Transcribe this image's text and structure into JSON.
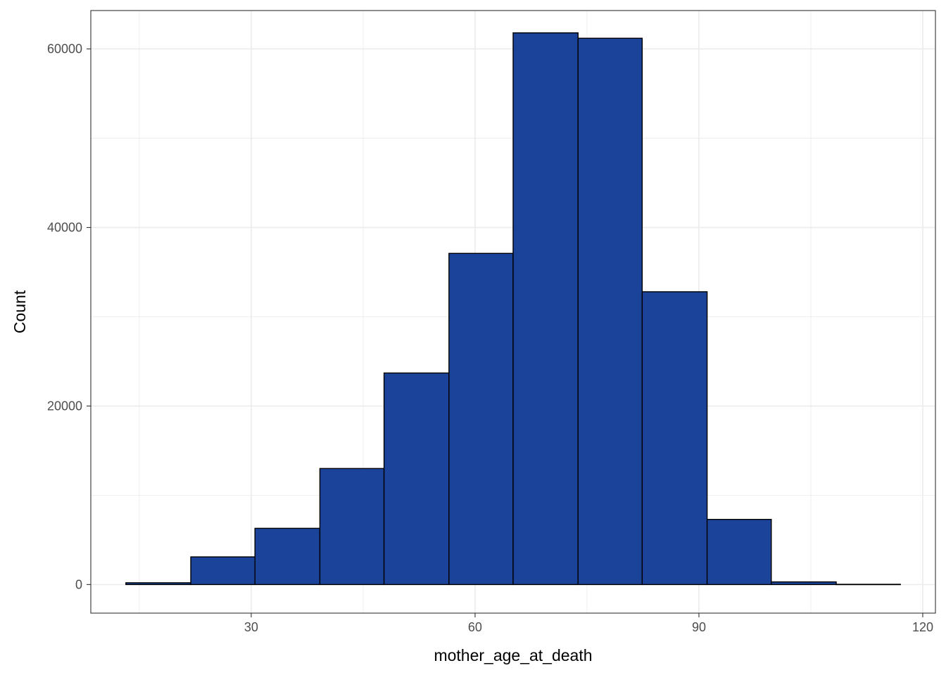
{
  "chart_data": {
    "type": "bar",
    "xlabel": "mother_age_at_death",
    "ylabel": "Count",
    "xlim": [
      8.5,
      121.7
    ],
    "ylim": [
      -3200,
      64300
    ],
    "x_ticks": [
      30,
      60,
      90,
      120
    ],
    "y_ticks": [
      0,
      20000,
      40000,
      60000
    ],
    "x_tick_labels": [
      "30",
      "60",
      "90",
      "120"
    ],
    "y_tick_labels": [
      "0",
      "20000",
      "40000",
      "60000"
    ],
    "grid": true,
    "bins": [
      {
        "x0": 13.2,
        "x1": 21.9,
        "count": 200
      },
      {
        "x0": 21.9,
        "x1": 30.5,
        "count": 3100
      },
      {
        "x0": 30.5,
        "x1": 39.2,
        "count": 6300
      },
      {
        "x0": 39.2,
        "x1": 47.8,
        "count": 13000
      },
      {
        "x0": 47.8,
        "x1": 56.5,
        "count": 23700
      },
      {
        "x0": 56.5,
        "x1": 65.1,
        "count": 37100
      },
      {
        "x0": 65.1,
        "x1": 73.8,
        "count": 61800
      },
      {
        "x0": 73.8,
        "x1": 82.4,
        "count": 61200
      },
      {
        "x0": 82.4,
        "x1": 91.1,
        "count": 32800
      },
      {
        "x0": 91.1,
        "x1": 99.7,
        "count": 7300
      },
      {
        "x0": 99.7,
        "x1": 108.4,
        "count": 300
      },
      {
        "x0": 108.4,
        "x1": 117.0,
        "count": 30
      }
    ],
    "colors": {
      "fill": "#1a4399",
      "stroke": "#000000",
      "grid": "#ebebeb",
      "panel_border": "#333333"
    }
  }
}
